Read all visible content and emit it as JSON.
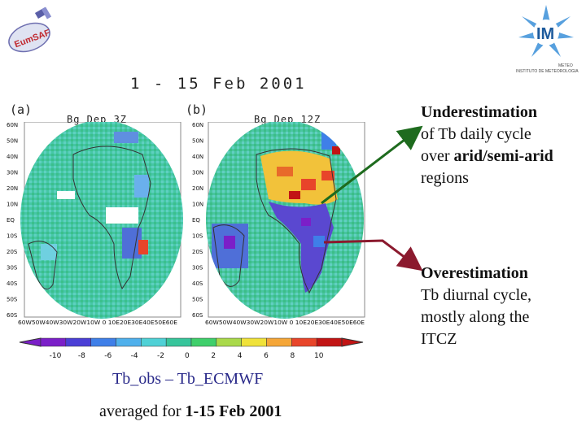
{
  "logos": {
    "left_text": "EumSAF",
    "right_text": "IM",
    "right_caption_1": "METEO",
    "right_caption_2": "INSTITUTO DE METEOROLOGIA"
  },
  "date_title": "1 - 15 Feb 2001",
  "panels": [
    {
      "label": "(a)",
      "title": "Bg_Dep  3Z"
    },
    {
      "label": "(b)",
      "title": "Bg_Dep  12Z"
    }
  ],
  "lat_labels": [
    "60N",
    "50N",
    "40N",
    "30N",
    "20N",
    "10N",
    "EQ",
    "10S",
    "20S",
    "30S",
    "40S",
    "50S",
    "60S"
  ],
  "lon_labels": "60W50W40W30W20W10W 0 10E20E30E40E50E60E",
  "colorbar": {
    "colors": [
      "#7b1fc8",
      "#4b3fd6",
      "#3f7fe8",
      "#4fb0ec",
      "#4fd1d6",
      "#37c59b",
      "#3fcf6b",
      "#a9d94a",
      "#f0e23a",
      "#f5a638",
      "#e8452a",
      "#c21414"
    ],
    "ticks": [
      "-10",
      "-8",
      "-6",
      "-4",
      "-2",
      "0",
      "2",
      "4",
      "6",
      "8",
      "10"
    ]
  },
  "annotations": {
    "under": {
      "w1": "Underestimation",
      "l2": "of Tb daily cycle",
      "l3_pre": "over ",
      "l3_bold": "arid/semi-arid",
      "l4": "regions",
      "arrow_color": "#1e6b1e"
    },
    "over": {
      "w1": "Overestimation",
      "l2": "Tb diurnal cycle,",
      "l3": "mostly along the",
      "l4": "ITCZ",
      "arrow_color": "#8b1a2e"
    }
  },
  "formula": "Tb_obs  –  Tb_ECMWF",
  "averaged": {
    "pre": "averaged for ",
    "bold": "1-15 Feb 2001"
  }
}
